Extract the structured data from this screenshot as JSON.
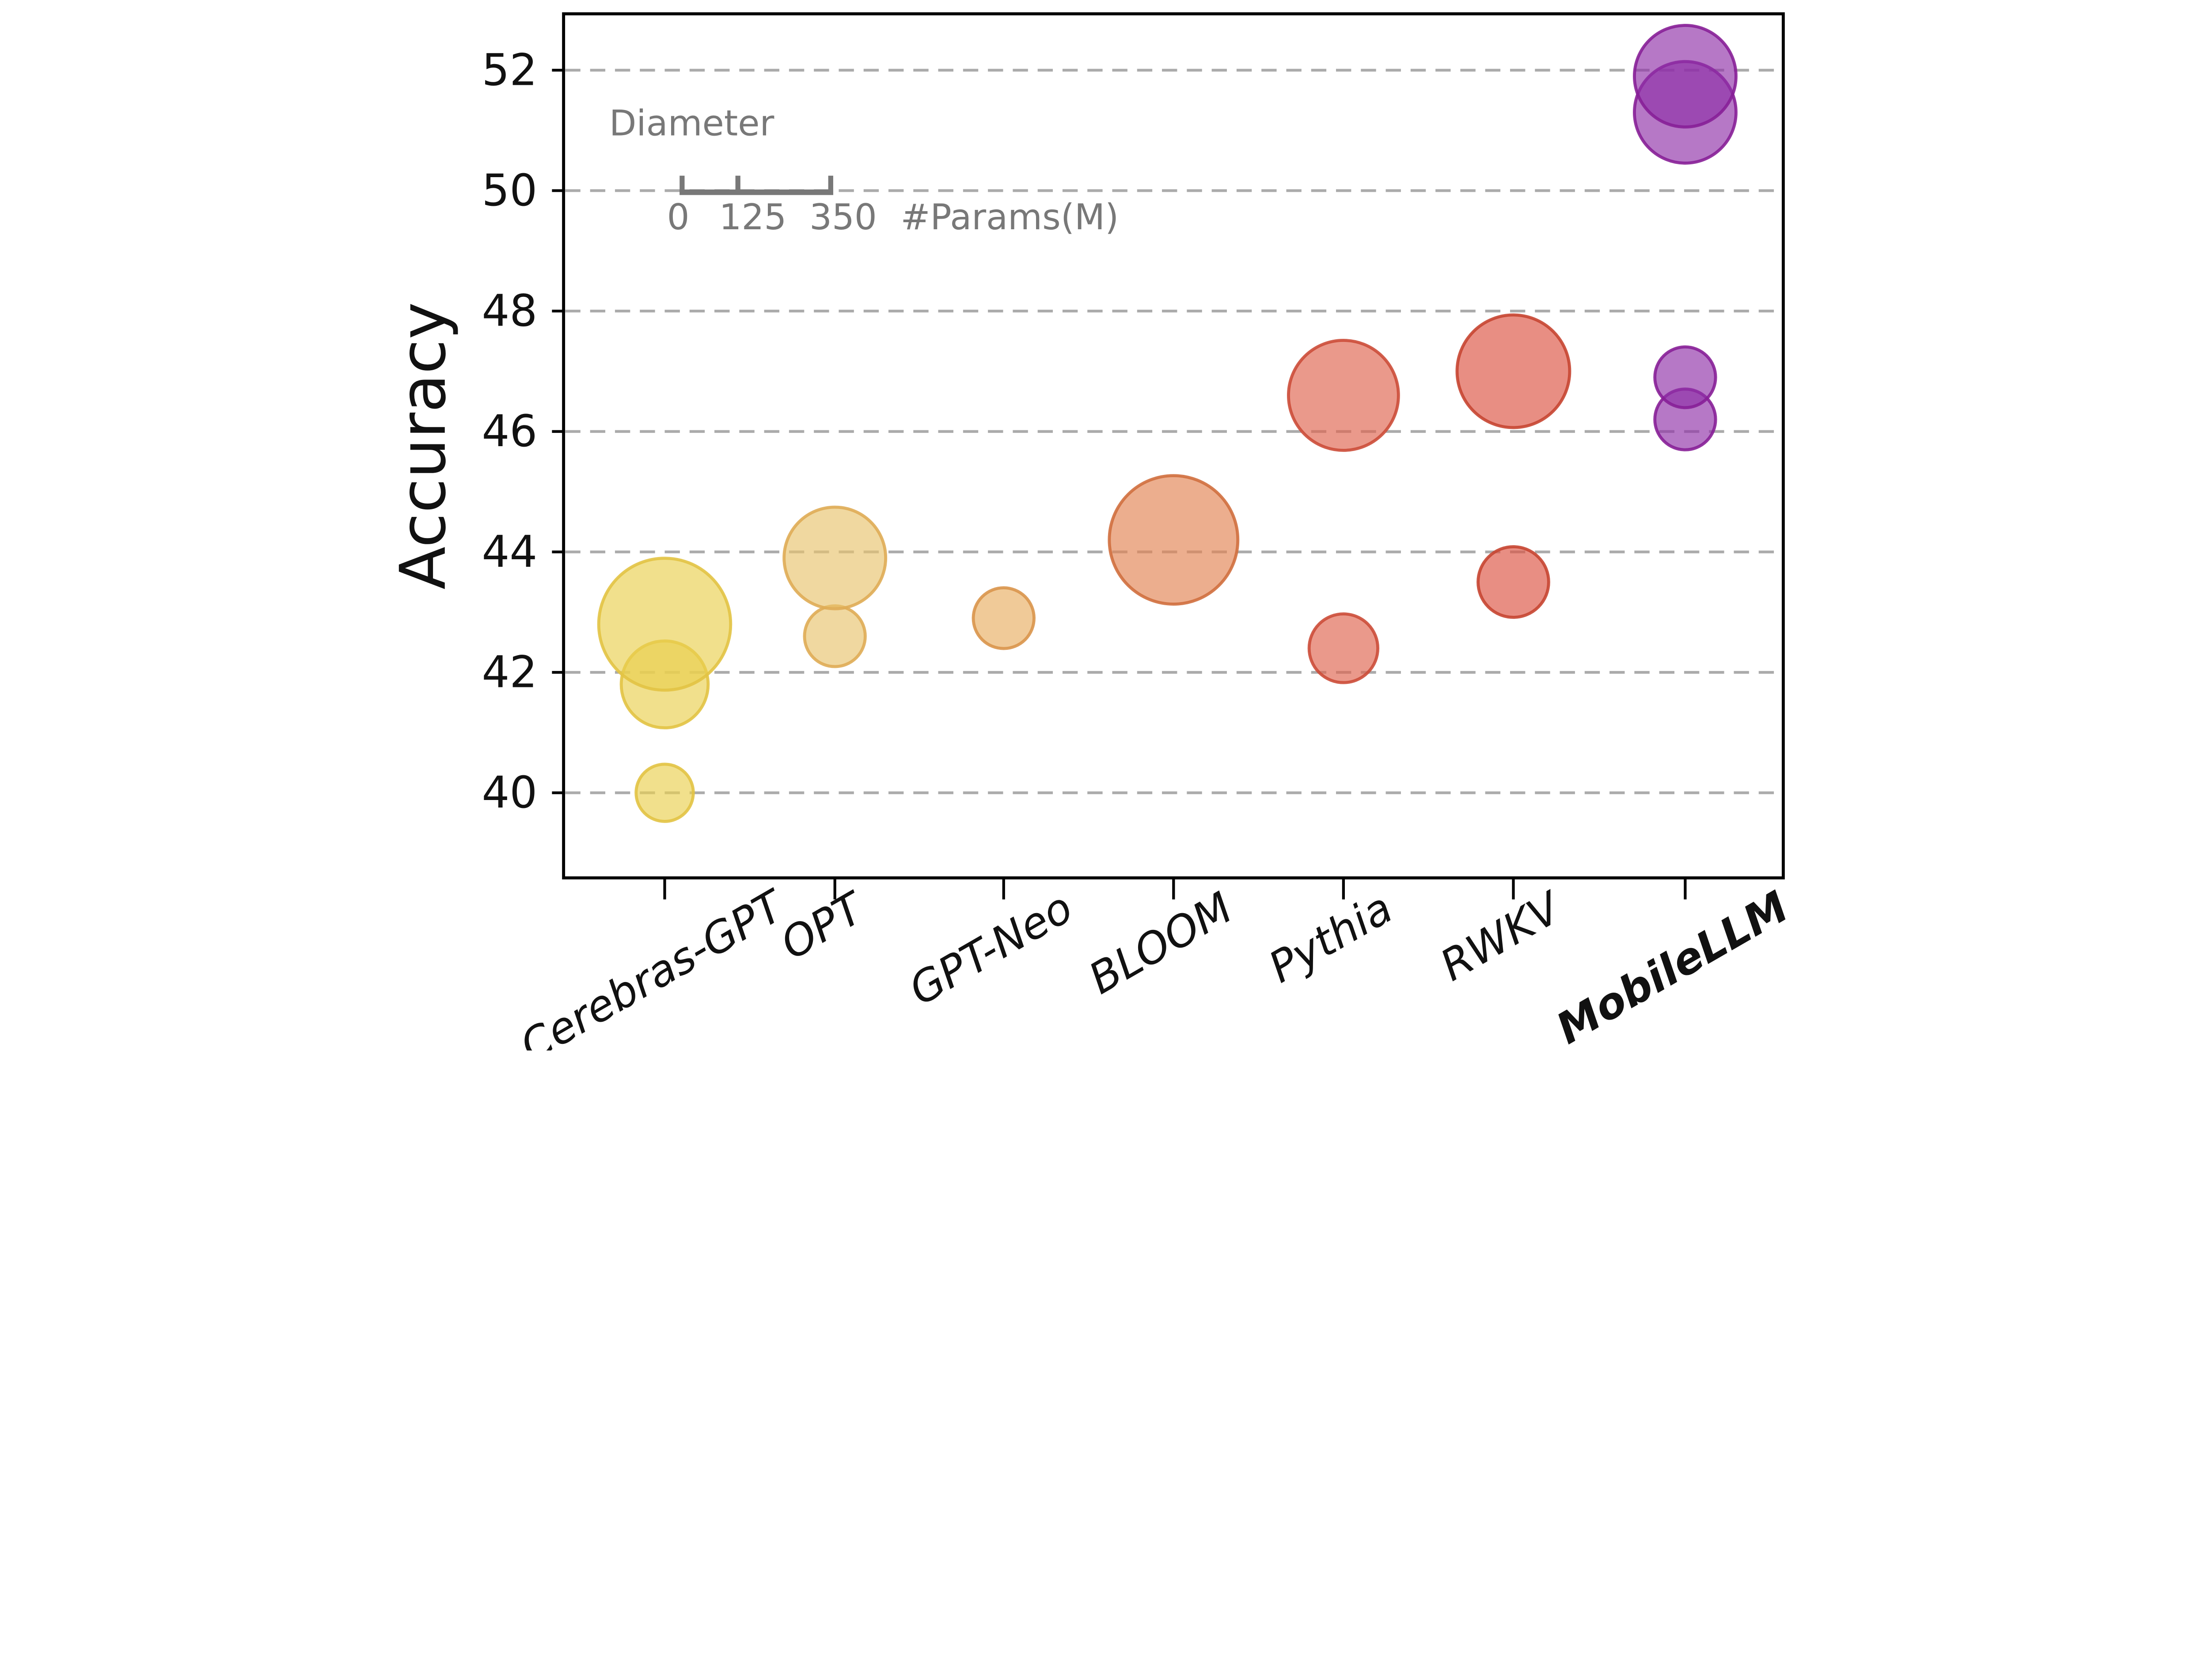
{
  "chart_data": {
    "type": "scatter",
    "subtype": "bubble",
    "title": "",
    "xlabel": "",
    "ylabel": "Accuracy",
    "yticks": [
      40,
      42,
      44,
      46,
      48,
      50,
      52
    ],
    "ylim": [
      38.6,
      52.9
    ],
    "grid": "horizontal-dashed",
    "legend_position": "top-left-inside",
    "size_legend": {
      "title": "Diameter",
      "tick_labels": [
        "0",
        "125",
        "350"
      ],
      "units_label": "#Params(M)"
    },
    "categories": [
      "Cerebras-GPT",
      "OPT",
      "GPT-Neo",
      "BLOOM",
      "Pythia",
      "RWKV",
      "MobileLLM"
    ],
    "series": [
      {
        "name": "Cerebras-GPT",
        "fill": "#E9CF4F",
        "stroke": "#E2C344",
        "bold": false,
        "points": [
          {
            "params_m": 111,
            "accuracy": 40.0
          },
          {
            "params_m": 256,
            "accuracy": 41.8
          },
          {
            "params_m": 590,
            "accuracy": 42.8
          }
        ]
      },
      {
        "name": "OPT",
        "fill": "#E8C36D",
        "stroke": "#DFAC55",
        "bold": false,
        "points": [
          {
            "params_m": 125,
            "accuracy": 42.6
          },
          {
            "params_m": 350,
            "accuracy": 43.9
          }
        ]
      },
      {
        "name": "GPT-Neo",
        "fill": "#E8AE61",
        "stroke": "#D9954B",
        "bold": false,
        "points": [
          {
            "params_m": 125,
            "accuracy": 42.9
          }
        ]
      },
      {
        "name": "BLOOM",
        "fill": "#E28352",
        "stroke": "#D06F3E",
        "bold": false,
        "points": [
          {
            "params_m": 560,
            "accuracy": 44.2
          }
        ]
      },
      {
        "name": "Pythia",
        "fill": "#DF624D",
        "stroke": "#CC4C38",
        "bold": false,
        "points": [
          {
            "params_m": 160,
            "accuracy": 42.4
          },
          {
            "params_m": 410,
            "accuracy": 46.6
          }
        ]
      },
      {
        "name": "RWKV",
        "fill": "#DC5240",
        "stroke": "#C64531",
        "bold": false,
        "points": [
          {
            "params_m": 169,
            "accuracy": 43.5
          },
          {
            "params_m": 430,
            "accuracy": 47.0
          }
        ]
      },
      {
        "name": "MobileLLM",
        "fill": "#8F30A8",
        "stroke": "#871F97",
        "bold": true,
        "points": [
          {
            "params_m": 125,
            "accuracy": 46.2
          },
          {
            "params_m": 125,
            "accuracy": 46.9
          },
          {
            "params_m": 350,
            "accuracy": 51.3
          },
          {
            "params_m": 350,
            "accuracy": 51.9
          }
        ]
      }
    ],
    "colors": {
      "gridline": "#ABABAB",
      "axis": "#000000",
      "tick_label": "#111111",
      "legend_gray": "#787878"
    }
  }
}
